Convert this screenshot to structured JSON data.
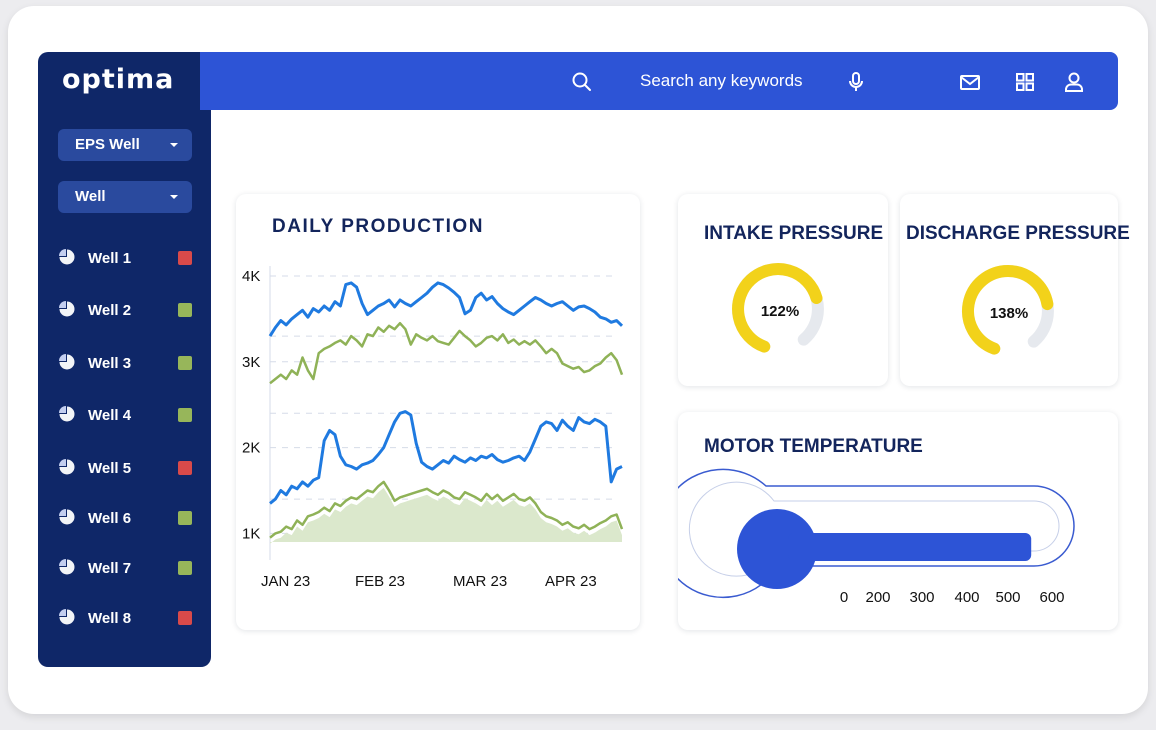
{
  "app": {
    "logo_text": "optima"
  },
  "sidebar": {
    "dropdowns": [
      {
        "label": "EPS Well"
      },
      {
        "label": "Well"
      }
    ],
    "wells": [
      {
        "label": "Well 1",
        "status": "#d94a4a"
      },
      {
        "label": "Well 2",
        "status": "#97b65a"
      },
      {
        "label": "Well 3",
        "status": "#97b65a"
      },
      {
        "label": "Well 4",
        "status": "#97b65a"
      },
      {
        "label": "Well 5",
        "status": "#d94a4a"
      },
      {
        "label": "Well 6",
        "status": "#97b65a"
      },
      {
        "label": "Well 7",
        "status": "#97b65a"
      },
      {
        "label": "Well 8",
        "status": "#d94a4a"
      }
    ]
  },
  "topbar": {
    "search_placeholder": "Search any keywords",
    "icons": [
      "search-icon",
      "microphone-icon",
      "mail-icon",
      "grid-icon",
      "user-icon"
    ]
  },
  "colors": {
    "sidebar": "#0f2768",
    "topbar": "#2d54d6",
    "accent_blue": "#1f7ae0",
    "accent_green": "#8fb257",
    "gauge_yellow": "#f2d21a",
    "thermo_blue": "#2d54d6"
  },
  "daily_production": {
    "title": "DAILY PRODUCTION",
    "chart_data": {
      "type": "line",
      "title": "DAILY PRODUCTION",
      "y_ticks": [
        "4K",
        "3K",
        "2K",
        "1K"
      ],
      "x_ticks": [
        "JAN 23",
        "FEB 23",
        "MAR 23",
        "APR 23"
      ],
      "x_range": [
        "JAN 23",
        "APR 23"
      ],
      "ylim": [
        900,
        4000
      ],
      "grid": true,
      "series": [
        {
          "values": [
            3300,
            3400,
            3480,
            3430,
            3500,
            3550,
            3600,
            3520,
            3620,
            3580,
            3650,
            3600,
            3700,
            3650,
            3900,
            3920,
            3870,
            3680,
            3550,
            3600,
            3650,
            3680,
            3720,
            3640,
            3720,
            3680,
            3650,
            3700,
            3750,
            3800,
            3870,
            3920,
            3900,
            3860,
            3810,
            3750,
            3560,
            3600,
            3750,
            3800,
            3720,
            3760,
            3680,
            3620,
            3580,
            3550,
            3600,
            3650,
            3700,
            3750,
            3720,
            3680,
            3650,
            3680,
            3700,
            3650,
            3600,
            3640,
            3650,
            3620,
            3580,
            3520,
            3500,
            3460,
            3480,
            3420
          ]
        },
        {
          "values": [
            2750,
            2800,
            2850,
            2800,
            2900,
            2850,
            3050,
            2900,
            2800,
            3100,
            3150,
            3180,
            3220,
            3250,
            3200,
            3300,
            3250,
            3180,
            3320,
            3300,
            3400,
            3350,
            3420,
            3380,
            3450,
            3380,
            3200,
            3320,
            3280,
            3250,
            3300,
            3240,
            3220,
            3200,
            3280,
            3360,
            3300,
            3250,
            3180,
            3220,
            3280,
            3300,
            3250,
            3320,
            3220,
            3260,
            3200,
            3240,
            3200,
            3250,
            3180,
            3100,
            3150,
            3100,
            2980,
            2950,
            2920,
            2940,
            2880,
            2900,
            2950,
            2980,
            3050,
            3100,
            3020,
            2850
          ]
        },
        {
          "values": [
            1350,
            1400,
            1500,
            1450,
            1550,
            1520,
            1600,
            1550,
            1620,
            1650,
            2080,
            2200,
            2150,
            1900,
            1800,
            1780,
            1750,
            1800,
            1820,
            1850,
            1920,
            2000,
            2150,
            2300,
            2400,
            2420,
            2380,
            2050,
            1830,
            1780,
            1750,
            1800,
            1850,
            1820,
            1900,
            1860,
            1830,
            1880,
            1850,
            1900,
            1880,
            1920,
            1860,
            1830,
            1850,
            1880,
            1900,
            1850,
            1950,
            2100,
            2250,
            2300,
            2280,
            2200,
            2320,
            2250,
            2200,
            2350,
            2300,
            2280,
            2330,
            2300,
            2250,
            1600,
            1750,
            1780
          ]
        },
        {
          "values": [
            950,
            1000,
            1020,
            1080,
            1050,
            1150,
            1100,
            1200,
            1220,
            1250,
            1300,
            1260,
            1350,
            1320,
            1380,
            1420,
            1400,
            1450,
            1500,
            1480,
            1550,
            1600,
            1500,
            1380,
            1420,
            1440,
            1460,
            1480,
            1500,
            1520,
            1480,
            1450,
            1500,
            1470,
            1420,
            1400,
            1480,
            1450,
            1420,
            1380,
            1460,
            1400,
            1450,
            1380,
            1420,
            1460,
            1400,
            1380,
            1420,
            1350,
            1250,
            1200,
            1180,
            1150,
            1100,
            1130,
            1080,
            1060,
            1100,
            1050,
            1080,
            1120,
            1150,
            1200,
            1220,
            1050
          ]
        }
      ]
    }
  },
  "intake_pressure": {
    "title": "INTAKE PRESSURE",
    "value_text": "122%",
    "fill_fraction": 0.78
  },
  "discharge_pressure": {
    "title": "DISCHARGE PRESSURE",
    "value_text": "138%",
    "fill_fraction": 0.8
  },
  "motor_temperature": {
    "title": "MOTOR TEMPERATURE",
    "scale_labels": [
      "0",
      "200",
      "300",
      "400",
      "500",
      "600"
    ],
    "fill_fraction": 0.95
  }
}
